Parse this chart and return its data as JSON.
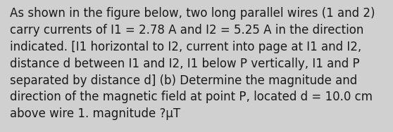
{
  "text": "As shown in the figure below, two long parallel wires (1 and 2)\ncarry currents of I1 = 2.78 A and I2 = 5.25 A in the direction\nindicated. [I1 horizontal to I2, current into page at I1 and I2,\ndistance d between I1 and I2, I1 below P vertically, I1 and P\nseparated by distance d] (b) Determine the magnitude and\ndirection of the magnetic field at point P, located d = 10.0 cm\nabove wire 1. magnitude ?μT",
  "background_color": "#d0d0d0",
  "text_color": "#1a1a1a",
  "font_size": 12.0,
  "fig_width": 5.58,
  "fig_height": 1.88,
  "dpi": 100
}
